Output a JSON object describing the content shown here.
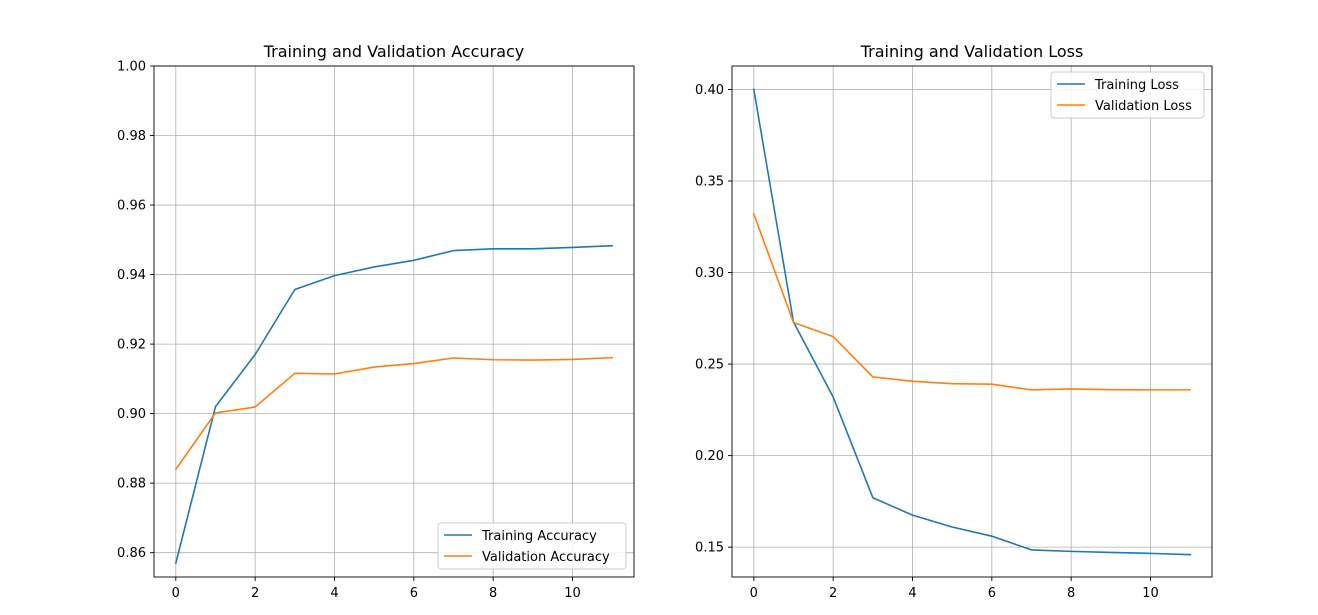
{
  "chart_data": [
    {
      "type": "line",
      "title": "Training and Validation Accuracy",
      "xlabel": "",
      "ylabel": "",
      "xlim": [
        -0.55,
        11.55
      ],
      "ylim": [
        0.853,
        1.0
      ],
      "xticks": [
        0,
        2,
        4,
        6,
        8,
        10
      ],
      "xtick_labels": [
        "0",
        "2",
        "4",
        "6",
        "8",
        "10"
      ],
      "yticks": [
        0.86,
        0.88,
        0.9,
        0.92,
        0.94,
        0.96,
        0.98,
        1.0
      ],
      "ytick_labels": [
        "0.86",
        "0.88",
        "0.90",
        "0.92",
        "0.94",
        "0.96",
        "0.98",
        "1.00"
      ],
      "grid": true,
      "legend_position": "lower-right",
      "x": [
        0,
        1,
        2,
        3,
        4,
        5,
        6,
        7,
        8,
        9,
        10,
        11
      ],
      "series": [
        {
          "name": "Training Accuracy",
          "color": "#1f77b4",
          "values": [
            0.857,
            0.902,
            0.917,
            0.9357,
            0.9397,
            0.9422,
            0.9441,
            0.9469,
            0.9474,
            0.9474,
            0.9478,
            0.9483
          ]
        },
        {
          "name": "Validation Accuracy",
          "color": "#ff7f0e",
          "values": [
            0.884,
            0.9002,
            0.9019,
            0.9116,
            0.9114,
            0.9134,
            0.9144,
            0.916,
            0.9155,
            0.9154,
            0.9156,
            0.9161
          ]
        }
      ]
    },
    {
      "type": "line",
      "title": "Training and Validation Loss",
      "xlabel": "",
      "ylabel": "",
      "xlim": [
        -0.55,
        11.55
      ],
      "ylim": [
        0.1337,
        0.4128
      ],
      "xticks": [
        0,
        2,
        4,
        6,
        8,
        10
      ],
      "xtick_labels": [
        "0",
        "2",
        "4",
        "6",
        "8",
        "10"
      ],
      "yticks": [
        0.15,
        0.2,
        0.25,
        0.3,
        0.35,
        0.4
      ],
      "ytick_labels": [
        "0.15",
        "0.20",
        "0.25",
        "0.30",
        "0.35",
        "0.40"
      ],
      "grid": true,
      "legend_position": "top-right",
      "x": [
        0,
        1,
        2,
        3,
        4,
        5,
        6,
        7,
        8,
        9,
        10,
        11
      ],
      "series": [
        {
          "name": "Training Loss",
          "color": "#1f77b4",
          "values": [
            0.4,
            0.273,
            0.232,
            0.177,
            0.1675,
            0.161,
            0.156,
            0.1485,
            0.1477,
            0.1471,
            0.1466,
            0.1459
          ]
        },
        {
          "name": "Validation Loss",
          "color": "#ff7f0e",
          "values": [
            0.332,
            0.2727,
            0.265,
            0.243,
            0.2406,
            0.2393,
            0.239,
            0.2359,
            0.2364,
            0.236,
            0.2359,
            0.2359
          ]
        }
      ]
    }
  ]
}
